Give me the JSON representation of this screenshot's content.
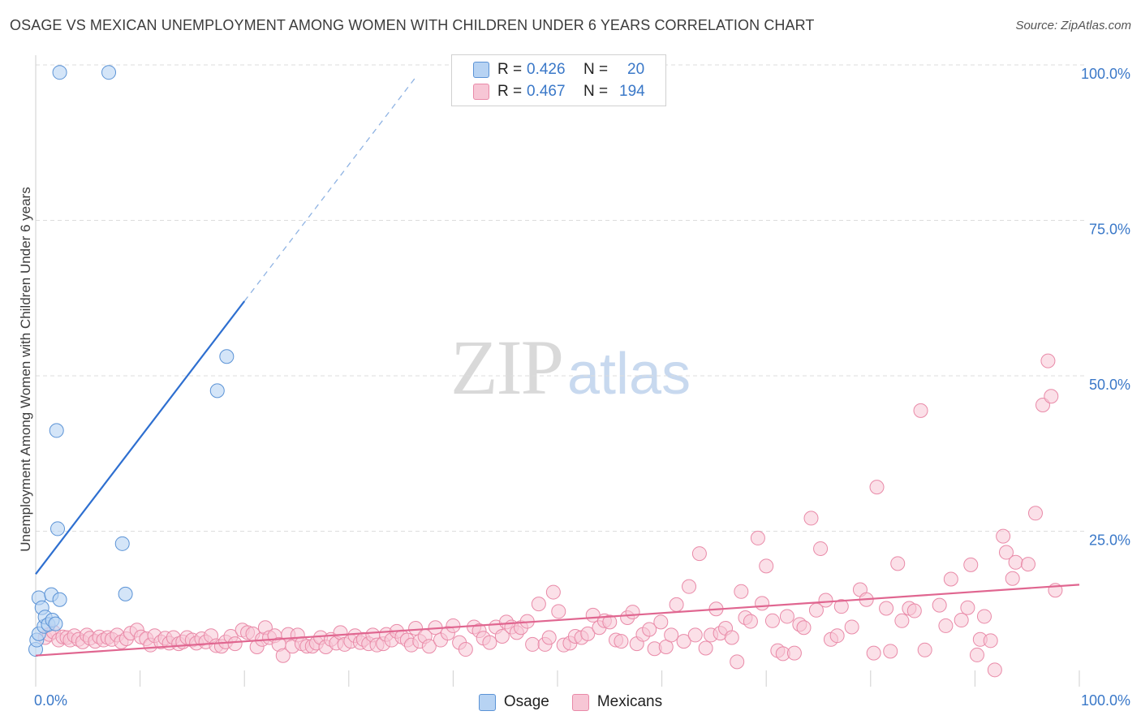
{
  "title": "OSAGE VS MEXICAN UNEMPLOYMENT AMONG WOMEN WITH CHILDREN UNDER 6 YEARS CORRELATION CHART",
  "source": "Source: ZipAtlas.com",
  "watermark": {
    "zip": "ZIP",
    "atlas": "atlas"
  },
  "legend_top": [
    {
      "r_label": "R =",
      "r_value": "0.426",
      "n_label": "N =",
      "n_value": "20"
    },
    {
      "r_label": "R =",
      "r_value": "0.467",
      "n_label": "N =",
      "n_value": "194"
    }
  ],
  "legend_bottom": [
    {
      "label": "Osage"
    },
    {
      "label": "Mexicans"
    }
  ],
  "colors": {
    "osage_fill": "#b7d3f3",
    "osage_stroke": "#5b93d6",
    "osage_line": "#2e6fd0",
    "mex_fill": "#f7c6d5",
    "mex_stroke": "#e98aa8",
    "mex_line": "#e06690",
    "grid": "#dddddd",
    "tick_label": "#3a78c8"
  },
  "chart_data": {
    "type": "scatter",
    "title": "OSAGE VS MEXICAN UNEMPLOYMENT AMONG WOMEN WITH CHILDREN UNDER 6 YEARS CORRELATION CHART",
    "xlabel": "",
    "ylabel": "Unemployment Among Women with Children Under 6 years",
    "xlim": [
      0,
      100
    ],
    "ylim": [
      0,
      100
    ],
    "x_tick_labels": [
      "0.0%",
      "100.0%"
    ],
    "y_ticks": [
      25,
      50,
      75,
      100
    ],
    "y_tick_labels": [
      "25.0%",
      "50.0%",
      "75.0%",
      "100.0%"
    ],
    "grid": true,
    "legend_position": "top-center",
    "series": [
      {
        "name": "Osage",
        "r": 0.426,
        "n": 20,
        "trend": {
          "x0": 0,
          "y0": 18.1,
          "x1": 20,
          "y1": 62.0,
          "dashed_to_x": 36.4
        },
        "points": [
          [
            0.0,
            6.0
          ],
          [
            0.1,
            7.5
          ],
          [
            0.3,
            8.5
          ],
          [
            0.3,
            14.3
          ],
          [
            0.6,
            12.7
          ],
          [
            0.8,
            9.7
          ],
          [
            0.9,
            11.2
          ],
          [
            1.2,
            10.0
          ],
          [
            1.5,
            14.8
          ],
          [
            1.6,
            10.7
          ],
          [
            1.9,
            10.1
          ],
          [
            2.0,
            41.2
          ],
          [
            2.1,
            25.4
          ],
          [
            2.3,
            14.0
          ],
          [
            2.3,
            98.8
          ],
          [
            7.0,
            98.8
          ],
          [
            8.3,
            23.0
          ],
          [
            8.6,
            14.9
          ],
          [
            17.4,
            47.6
          ],
          [
            18.3,
            53.1
          ]
        ]
      },
      {
        "name": "Mexicans",
        "r": 0.467,
        "n": 194,
        "trend": {
          "x0": 0,
          "y0": 5.0,
          "x1": 100,
          "y1": 16.4
        },
        "points": [
          [
            0.9,
            7.9
          ],
          [
            1.3,
            8.4
          ],
          [
            1.7,
            8.8
          ],
          [
            2.2,
            7.5
          ],
          [
            2.6,
            8.0
          ],
          [
            3.0,
            7.9
          ],
          [
            3.3,
            7.5
          ],
          [
            3.7,
            8.2
          ],
          [
            4.1,
            7.6
          ],
          [
            4.5,
            7.2
          ],
          [
            4.9,
            8.3
          ],
          [
            5.2,
            7.8
          ],
          [
            5.7,
            7.3
          ],
          [
            6.1,
            8.0
          ],
          [
            6.5,
            7.5
          ],
          [
            6.9,
            7.9
          ],
          [
            7.3,
            7.6
          ],
          [
            7.8,
            8.3
          ],
          [
            8.2,
            7.2
          ],
          [
            8.7,
            7.7
          ],
          [
            9.1,
            8.6
          ],
          [
            9.7,
            9.1
          ],
          [
            10.1,
            8.0
          ],
          [
            10.6,
            7.7
          ],
          [
            11.0,
            6.7
          ],
          [
            11.4,
            8.2
          ],
          [
            12.0,
            7.2
          ],
          [
            12.4,
            7.8
          ],
          [
            12.8,
            7.0
          ],
          [
            13.2,
            7.9
          ],
          [
            13.7,
            6.9
          ],
          [
            14.1,
            7.2
          ],
          [
            14.5,
            7.9
          ],
          [
            15.0,
            7.5
          ],
          [
            15.4,
            7.0
          ],
          [
            15.9,
            7.7
          ],
          [
            16.3,
            7.2
          ],
          [
            16.8,
            8.2
          ],
          [
            17.3,
            6.6
          ],
          [
            17.8,
            6.5
          ],
          [
            18.2,
            7.2
          ],
          [
            18.7,
            8.1
          ],
          [
            19.1,
            6.9
          ],
          [
            19.8,
            9.1
          ],
          [
            20.3,
            8.7
          ],
          [
            20.8,
            8.5
          ],
          [
            21.2,
            6.4
          ],
          [
            21.7,
            7.6
          ],
          [
            22.0,
            9.5
          ],
          [
            22.4,
            7.9
          ],
          [
            22.9,
            8.2
          ],
          [
            23.3,
            6.8
          ],
          [
            23.7,
            5.0
          ],
          [
            24.2,
            8.4
          ],
          [
            24.6,
            6.5
          ],
          [
            25.1,
            8.3
          ],
          [
            25.5,
            6.9
          ],
          [
            26.0,
            6.5
          ],
          [
            26.5,
            6.5
          ],
          [
            26.9,
            7.0
          ],
          [
            27.3,
            7.9
          ],
          [
            27.8,
            6.4
          ],
          [
            28.3,
            7.6
          ],
          [
            28.8,
            7.0
          ],
          [
            29.2,
            8.7
          ],
          [
            29.6,
            6.8
          ],
          [
            30.2,
            7.3
          ],
          [
            30.6,
            8.2
          ],
          [
            31.1,
            7.1
          ],
          [
            31.4,
            7.6
          ],
          [
            31.9,
            6.9
          ],
          [
            32.3,
            8.3
          ],
          [
            32.7,
            6.7
          ],
          [
            33.3,
            6.9
          ],
          [
            33.6,
            8.4
          ],
          [
            34.1,
            7.5
          ],
          [
            34.6,
            8.9
          ],
          [
            35.1,
            8.0
          ],
          [
            35.6,
            7.5
          ],
          [
            36.0,
            6.7
          ],
          [
            36.4,
            9.4
          ],
          [
            36.8,
            7.3
          ],
          [
            37.3,
            8.1
          ],
          [
            37.7,
            6.5
          ],
          [
            38.3,
            9.5
          ],
          [
            38.8,
            7.5
          ],
          [
            39.5,
            8.6
          ],
          [
            40.0,
            9.8
          ],
          [
            40.6,
            7.1
          ],
          [
            41.2,
            6.0
          ],
          [
            42.0,
            9.6
          ],
          [
            42.5,
            9.0
          ],
          [
            42.9,
            7.8
          ],
          [
            43.5,
            7.1
          ],
          [
            44.1,
            9.6
          ],
          [
            44.7,
            8.1
          ],
          [
            45.1,
            10.4
          ],
          [
            45.6,
            9.6
          ],
          [
            46.1,
            8.7
          ],
          [
            46.5,
            9.5
          ],
          [
            47.1,
            10.5
          ],
          [
            47.6,
            6.8
          ],
          [
            48.2,
            13.3
          ],
          [
            48.8,
            6.8
          ],
          [
            49.2,
            7.9
          ],
          [
            49.6,
            15.2
          ],
          [
            50.1,
            12.1
          ],
          [
            50.6,
            6.7
          ],
          [
            51.2,
            7.0
          ],
          [
            51.7,
            8.1
          ],
          [
            52.3,
            7.9
          ],
          [
            52.9,
            8.5
          ],
          [
            53.4,
            11.5
          ],
          [
            54.0,
            9.5
          ],
          [
            54.5,
            10.6
          ],
          [
            55.0,
            10.4
          ],
          [
            55.6,
            7.5
          ],
          [
            56.1,
            7.3
          ],
          [
            56.7,
            11.1
          ],
          [
            57.2,
            12.0
          ],
          [
            57.6,
            6.9
          ],
          [
            58.2,
            8.4
          ],
          [
            58.8,
            9.2
          ],
          [
            59.3,
            6.1
          ],
          [
            59.9,
            10.4
          ],
          [
            60.4,
            6.4
          ],
          [
            60.9,
            8.3
          ],
          [
            61.4,
            13.2
          ],
          [
            62.1,
            7.3
          ],
          [
            62.6,
            16.1
          ],
          [
            63.2,
            8.3
          ],
          [
            63.6,
            21.4
          ],
          [
            64.2,
            6.2
          ],
          [
            64.7,
            8.3
          ],
          [
            65.2,
            12.5
          ],
          [
            65.6,
            8.6
          ],
          [
            66.1,
            9.4
          ],
          [
            66.7,
            7.9
          ],
          [
            67.2,
            4.0
          ],
          [
            67.6,
            15.3
          ],
          [
            68.0,
            11.1
          ],
          [
            68.5,
            10.5
          ],
          [
            69.2,
            23.9
          ],
          [
            69.6,
            13.4
          ],
          [
            70.0,
            19.4
          ],
          [
            70.6,
            10.6
          ],
          [
            71.1,
            5.8
          ],
          [
            71.6,
            5.3
          ],
          [
            72.0,
            11.3
          ],
          [
            72.7,
            5.4
          ],
          [
            73.2,
            10.0
          ],
          [
            73.6,
            9.5
          ],
          [
            74.3,
            27.1
          ],
          [
            74.8,
            12.3
          ],
          [
            75.2,
            22.2
          ],
          [
            75.7,
            13.9
          ],
          [
            76.2,
            7.6
          ],
          [
            76.8,
            8.2
          ],
          [
            77.2,
            12.9
          ],
          [
            78.2,
            9.6
          ],
          [
            79.0,
            15.6
          ],
          [
            79.6,
            14.0
          ],
          [
            80.3,
            5.4
          ],
          [
            80.6,
            32.1
          ],
          [
            81.5,
            12.6
          ],
          [
            81.9,
            5.7
          ],
          [
            82.6,
            19.8
          ],
          [
            83.0,
            10.6
          ],
          [
            83.7,
            12.6
          ],
          [
            84.2,
            12.2
          ],
          [
            84.8,
            44.4
          ],
          [
            85.2,
            5.9
          ],
          [
            86.6,
            13.1
          ],
          [
            87.2,
            9.8
          ],
          [
            87.7,
            17.3
          ],
          [
            88.7,
            10.7
          ],
          [
            89.3,
            12.7
          ],
          [
            89.6,
            19.6
          ],
          [
            90.2,
            5.1
          ],
          [
            90.5,
            7.6
          ],
          [
            90.9,
            11.3
          ],
          [
            91.5,
            7.4
          ],
          [
            91.9,
            2.7
          ],
          [
            92.7,
            24.2
          ],
          [
            93.0,
            21.6
          ],
          [
            93.6,
            17.4
          ],
          [
            93.9,
            20.0
          ],
          [
            95.1,
            19.7
          ],
          [
            95.8,
            27.9
          ],
          [
            96.5,
            45.3
          ],
          [
            97.0,
            52.4
          ],
          [
            97.3,
            46.7
          ],
          [
            97.7,
            15.5
          ]
        ]
      }
    ]
  }
}
